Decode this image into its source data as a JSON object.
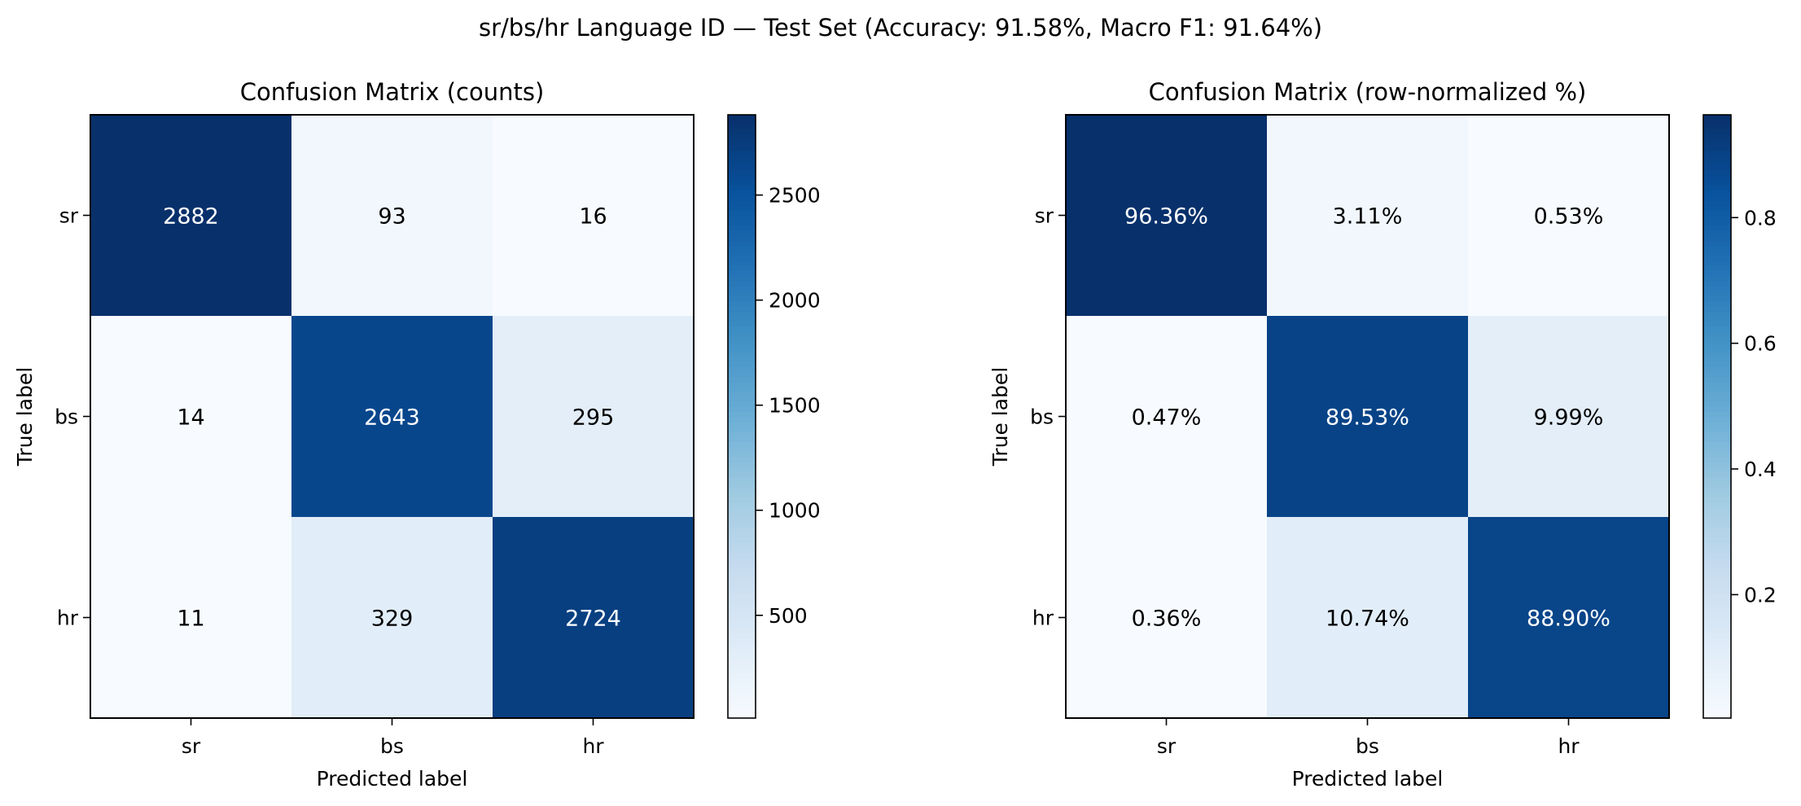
{
  "figure": {
    "suptitle": "sr/bs/hr Language ID — Test Set (Accuracy: 91.58%, Macro F1: 91.64%)"
  },
  "chart_data": [
    {
      "type": "heatmap",
      "title": "Confusion Matrix (counts)",
      "xlabel": "Predicted label",
      "ylabel": "True label",
      "x_categories": [
        "sr",
        "bs",
        "hr"
      ],
      "y_categories": [
        "sr",
        "bs",
        "hr"
      ],
      "values": [
        [
          2882,
          93,
          16
        ],
        [
          14,
          2643,
          295
        ],
        [
          11,
          329,
          2724
        ]
      ],
      "cell_labels": [
        [
          "2882",
          "93",
          "16"
        ],
        [
          "14",
          "2643",
          "295"
        ],
        [
          "11",
          "329",
          "2724"
        ]
      ],
      "colormap": "Blues",
      "vmin": 11,
      "vmax": 2882,
      "colorbar_ticks": [
        500,
        1000,
        1500,
        2000,
        2500
      ],
      "colorbar_tick_labels": [
        "500",
        "1000",
        "1500",
        "2000",
        "2500"
      ]
    },
    {
      "type": "heatmap",
      "title": "Confusion Matrix (row-normalized %)",
      "xlabel": "Predicted label",
      "ylabel": "True label",
      "x_categories": [
        "sr",
        "bs",
        "hr"
      ],
      "y_categories": [
        "sr",
        "bs",
        "hr"
      ],
      "values": [
        [
          0.9636,
          0.0311,
          0.0053
        ],
        [
          0.0047,
          0.8953,
          0.0999
        ],
        [
          0.0036,
          0.1074,
          0.889
        ]
      ],
      "cell_labels": [
        [
          "96.36%",
          "3.11%",
          "0.53%"
        ],
        [
          "0.47%",
          "89.53%",
          "9.99%"
        ],
        [
          "0.36%",
          "10.74%",
          "88.90%"
        ]
      ],
      "colormap": "Blues",
      "vmin": 0.0036,
      "vmax": 0.9636,
      "colorbar_ticks": [
        0.2,
        0.4,
        0.6,
        0.8
      ],
      "colorbar_tick_labels": [
        "0.2",
        "0.4",
        "0.6",
        "0.8"
      ]
    }
  ]
}
